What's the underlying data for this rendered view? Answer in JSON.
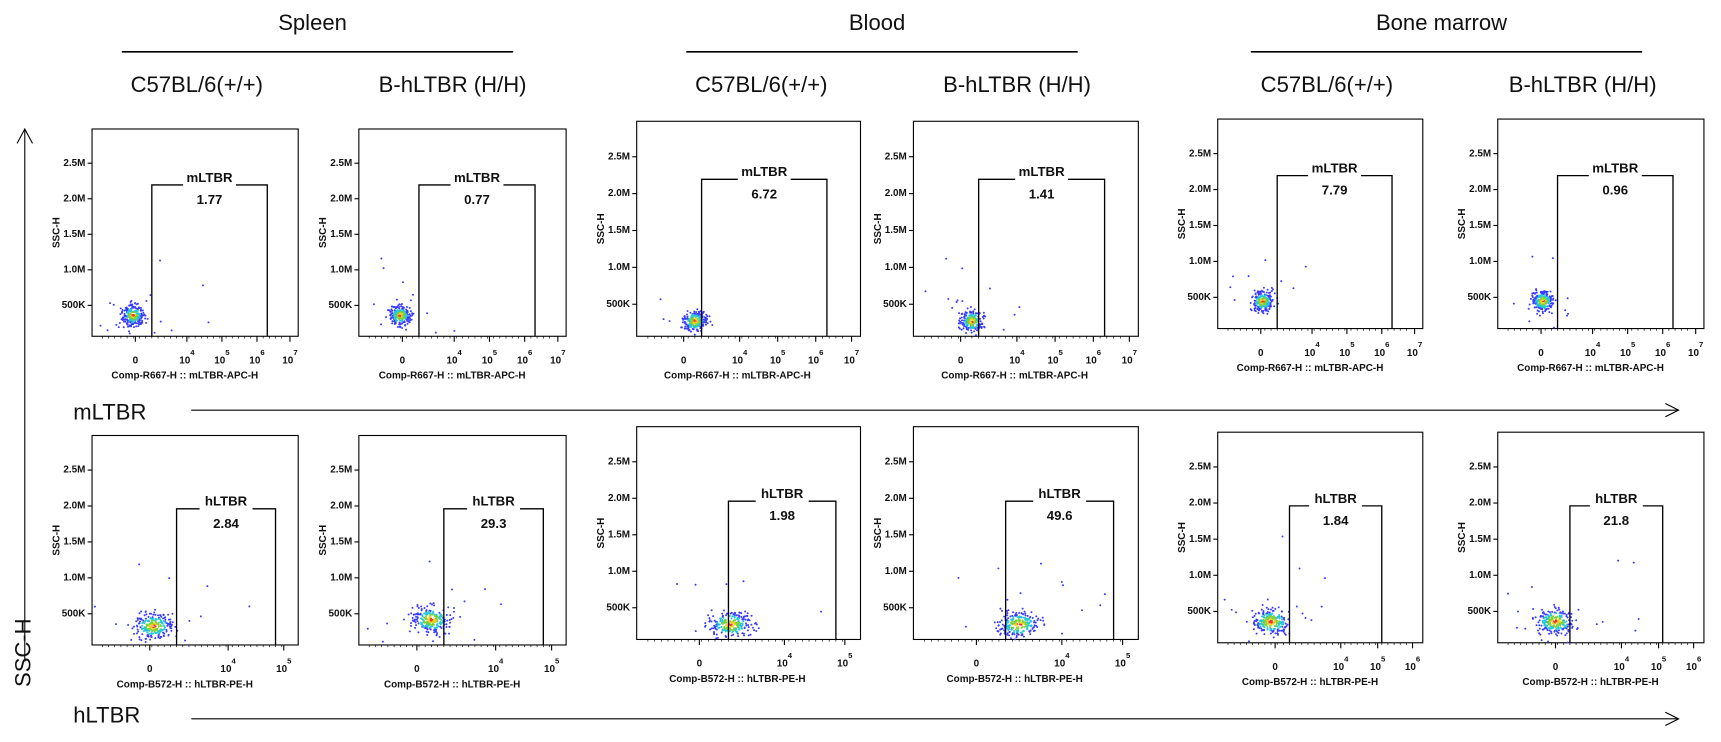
{
  "tissues": [
    {
      "name": "Spleen",
      "strains": [
        "C57BL/6(+/+)",
        "B-hLTBR (H/H)"
      ]
    },
    {
      "name": "Blood",
      "strains": [
        "C57BL/6(+/+)",
        "B-hLTBR (H/H)"
      ]
    },
    {
      "name": "Bone marrow",
      "strains": [
        "C57BL/6(+/+)",
        "B-hLTBR (H/H)"
      ]
    }
  ],
  "y_axis_label": "SSC-H",
  "y_ticks": [
    "500K",
    "1.0M",
    "1.5M",
    "2.0M",
    "2.5M"
  ],
  "rows": [
    {
      "label": "mLTBR",
      "panels": [
        {
          "gate": "mLTBR",
          "percent": 1.77,
          "y_title": "SSC-H",
          "x_title": "Comp-R667-H :: mLTBR-APC-H",
          "x_ticks": [
            {
              "label": "0"
            },
            {
              "label": "10",
              "sup": "4"
            },
            {
              "label": "10",
              "sup": "5"
            },
            {
              "label": "10",
              "sup": "6"
            },
            {
              "label": "10",
              "sup": "7"
            }
          ]
        },
        {
          "gate": "mLTBR",
          "percent": 0.77,
          "y_title": "SSC-H",
          "x_title": "Comp-R667-H :: mLTBR-APC-H",
          "x_ticks": [
            {
              "label": "0"
            },
            {
              "label": "10",
              "sup": "4"
            },
            {
              "label": "10",
              "sup": "5"
            },
            {
              "label": "10",
              "sup": "6"
            },
            {
              "label": "10",
              "sup": "7"
            }
          ]
        },
        {
          "gate": "mLTBR",
          "percent": 6.72,
          "y_title": "SSC-H",
          "x_title": "Comp-R667-H :: mLTBR-APC-H",
          "x_ticks": [
            {
              "label": "0"
            },
            {
              "label": "10",
              "sup": "4"
            },
            {
              "label": "10",
              "sup": "5"
            },
            {
              "label": "10",
              "sup": "6"
            },
            {
              "label": "10",
              "sup": "7"
            }
          ]
        },
        {
          "gate": "mLTBR",
          "percent": 1.41,
          "y_title": "SSC-H",
          "x_title": "Comp-R667-H :: mLTBR-APC-H",
          "x_ticks": [
            {
              "label": "0"
            },
            {
              "label": "10",
              "sup": "4"
            },
            {
              "label": "10",
              "sup": "5"
            },
            {
              "label": "10",
              "sup": "6"
            },
            {
              "label": "10",
              "sup": "7"
            }
          ]
        },
        {
          "gate": "mLTBR",
          "percent": 7.79,
          "y_title": "SSC-H",
          "x_title": "Comp-R667-H :: mLTBR-APC-H",
          "x_ticks": [
            {
              "label": "0"
            },
            {
              "label": "10",
              "sup": "4"
            },
            {
              "label": "10",
              "sup": "5"
            },
            {
              "label": "10",
              "sup": "6"
            },
            {
              "label": "10",
              "sup": "7"
            }
          ]
        },
        {
          "gate": "mLTBR",
          "percent": 0.96,
          "y_title": "SSC-H",
          "x_title": "Comp-R667-H :: mLTBR-APC-H",
          "x_ticks": [
            {
              "label": "0"
            },
            {
              "label": "10",
              "sup": "4"
            },
            {
              "label": "10",
              "sup": "5"
            },
            {
              "label": "10",
              "sup": "6"
            },
            {
              "label": "10",
              "sup": "7"
            }
          ]
        }
      ]
    },
    {
      "label": "hLTBR",
      "panels": [
        {
          "gate": "hLTBR",
          "percent": 2.84,
          "y_title": "SSC-H",
          "x_title": "Comp-B572-H :: hLTBR-PE-H",
          "x_ticks": [
            {
              "label": "0"
            },
            {
              "label": "10",
              "sup": "4"
            },
            {
              "label": "10",
              "sup": "5"
            }
          ]
        },
        {
          "gate": "hLTBR",
          "percent": 29.3,
          "y_title": "SSC-H",
          "x_title": "Comp-B572-H :: hLTBR-PE-H",
          "x_ticks": [
            {
              "label": "0"
            },
            {
              "label": "10",
              "sup": "4"
            },
            {
              "label": "10",
              "sup": "5"
            }
          ]
        },
        {
          "gate": "hLTBR",
          "percent": 1.98,
          "y_title": "SSC-H",
          "x_title": "Comp-B572-H :: hLTBR-PE-H",
          "x_ticks": [
            {
              "label": "0"
            },
            {
              "label": "10",
              "sup": "4"
            },
            {
              "label": "10",
              "sup": "5"
            }
          ]
        },
        {
          "gate": "hLTBR",
          "percent": 49.6,
          "y_title": "SSC-H",
          "x_title": "Comp-B572-H :: hLTBR-PE-H",
          "x_ticks": [
            {
              "label": "0"
            },
            {
              "label": "10",
              "sup": "4"
            },
            {
              "label": "10",
              "sup": "5"
            }
          ]
        },
        {
          "gate": "hLTBR",
          "percent": 1.84,
          "y_title": "SSC-H",
          "x_title": "Comp-B572-H :: hLTBR-PE-H",
          "x_ticks": [
            {
              "label": "0"
            },
            {
              "label": "10",
              "sup": "4"
            },
            {
              "label": "10",
              "sup": "5"
            },
            {
              "label": "10",
              "sup": "6"
            }
          ]
        },
        {
          "gate": "hLTBR",
          "percent": 21.8,
          "y_title": "SSC-H",
          "x_title": "Comp-B572-H :: hLTBR-PE-H",
          "x_ticks": [
            {
              "label": "0"
            },
            {
              "label": "10",
              "sup": "4"
            },
            {
              "label": "10",
              "sup": "5"
            },
            {
              "label": "10",
              "sup": "6"
            }
          ]
        }
      ]
    }
  ]
}
